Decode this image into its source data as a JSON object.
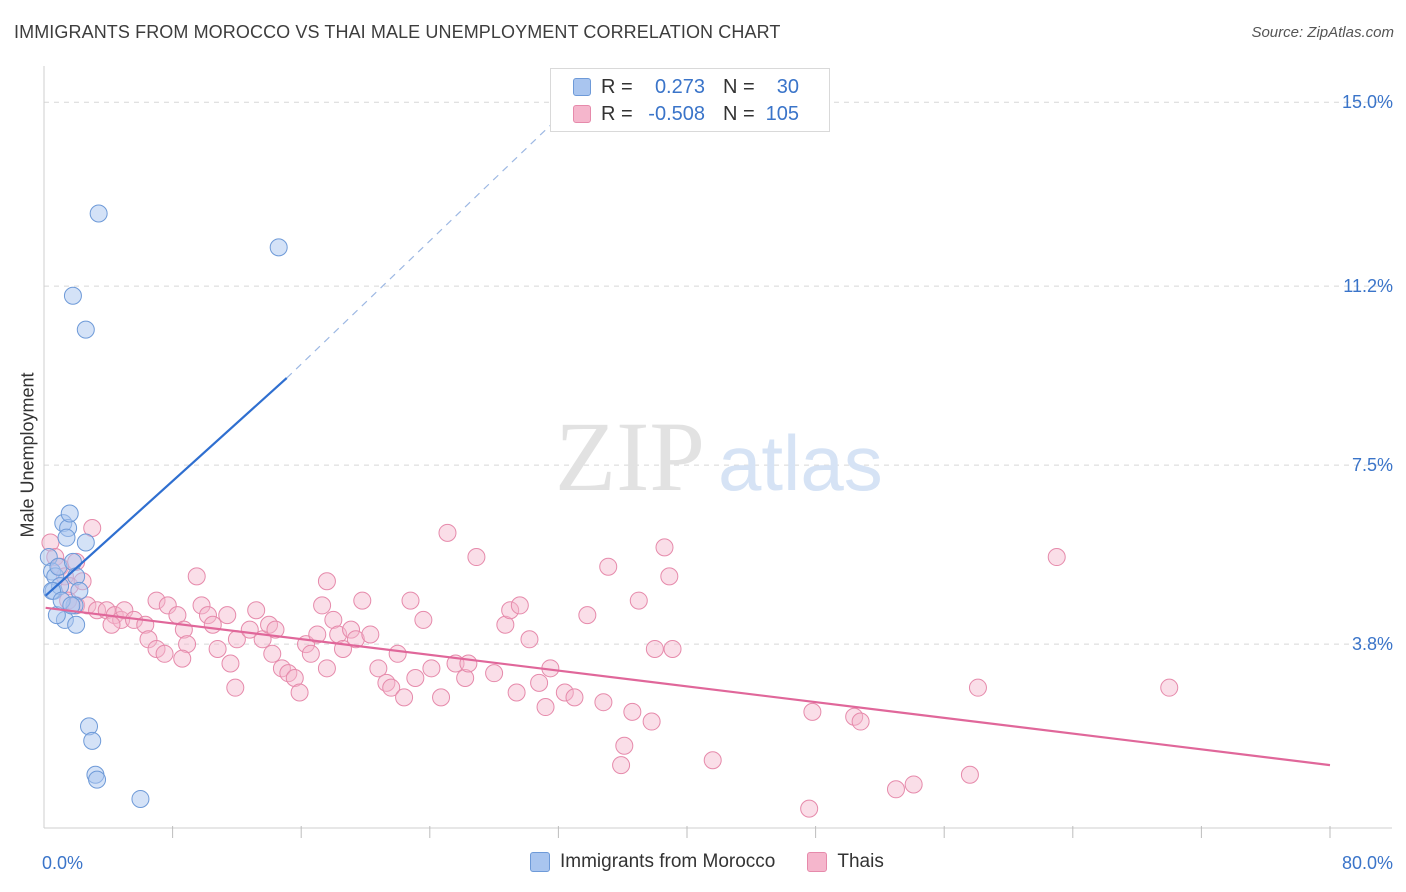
{
  "title": "IMMIGRANTS FROM MOROCCO VS THAI MALE UNEMPLOYMENT CORRELATION CHART",
  "source": "Source: ZipAtlas.com",
  "watermark": {
    "zip": "ZIP",
    "atlas": "atlas"
  },
  "colors": {
    "blue_fill": "#a9c5ef",
    "blue_stroke": "#6e9ad8",
    "blue_line": "#2f6fd0",
    "pink_fill": "#f5b6cc",
    "pink_stroke": "#e68aab",
    "pink_line": "#e0679a",
    "axis_label": "#3a74c9",
    "grid": "#d7d7d7"
  },
  "legend": {
    "rows": [
      {
        "r_label": "R =",
        "r_value": "0.273",
        "n_label": "N =",
        "n_value": "30"
      },
      {
        "r_label": "R =",
        "r_value": "-0.508",
        "n_label": "N =",
        "n_value": "105"
      }
    ]
  },
  "bottom_legend": {
    "series1": "Immigrants from Morocco",
    "series2": "Thais"
  },
  "chart_data": {
    "type": "scatter",
    "title": "IMMIGRANTS FROM MOROCCO VS THAI MALE UNEMPLOYMENT CORRELATION CHART",
    "xlabel": "",
    "ylabel": "Male Unemployment",
    "xlim": [
      0,
      80
    ],
    "ylim": [
      0,
      15.5
    ],
    "x_tick_labels": [
      "0.0%",
      "80.0%"
    ],
    "y_ticks": [
      3.8,
      7.5,
      11.2,
      15.0
    ],
    "y_tick_labels": [
      "3.8%",
      "7.5%",
      "11.2%",
      "15.0%"
    ],
    "series": [
      {
        "name": "Immigrants from Morocco",
        "r": 0.273,
        "n": 30,
        "trend": {
          "x0": 0.1,
          "y0": 4.8,
          "x1": 15.1,
          "y1": 9.3,
          "dash_to_x": 33,
          "dash_to_y": 15.0
        },
        "points": [
          [
            0.3,
            5.6
          ],
          [
            0.5,
            5.3
          ],
          [
            0.7,
            5.2
          ],
          [
            0.9,
            5.4
          ],
          [
            0.6,
            4.9
          ],
          [
            1.0,
            5.0
          ],
          [
            1.2,
            6.3
          ],
          [
            1.5,
            6.2
          ],
          [
            1.4,
            6.0
          ],
          [
            1.6,
            6.5
          ],
          [
            1.8,
            5.5
          ],
          [
            2.0,
            5.2
          ],
          [
            2.2,
            4.9
          ],
          [
            1.9,
            4.6
          ],
          [
            1.3,
            4.3
          ],
          [
            0.8,
            4.4
          ],
          [
            0.5,
            4.9
          ],
          [
            1.1,
            4.7
          ],
          [
            1.7,
            4.6
          ],
          [
            2.0,
            4.2
          ],
          [
            2.6,
            5.9
          ],
          [
            1.8,
            11.0
          ],
          [
            2.6,
            10.3
          ],
          [
            3.4,
            12.7
          ],
          [
            14.6,
            12.0
          ],
          [
            2.8,
            2.1
          ],
          [
            3.0,
            1.8
          ],
          [
            3.2,
            1.1
          ],
          [
            3.3,
            1.0
          ],
          [
            6.0,
            0.6
          ]
        ]
      },
      {
        "name": "Thais",
        "r": -0.508,
        "n": 105,
        "trend": {
          "x0": 0.1,
          "y0": 4.55,
          "x1": 80,
          "y1": 1.3
        },
        "points": [
          [
            0.4,
            5.9
          ],
          [
            0.7,
            5.6
          ],
          [
            1.0,
            5.4
          ],
          [
            1.3,
            5.2
          ],
          [
            1.6,
            5.0
          ],
          [
            2.0,
            5.5
          ],
          [
            2.4,
            5.1
          ],
          [
            3.0,
            6.2
          ],
          [
            1.5,
            4.7
          ],
          [
            2.0,
            4.6
          ],
          [
            2.7,
            4.6
          ],
          [
            3.3,
            4.5
          ],
          [
            3.9,
            4.5
          ],
          [
            4.4,
            4.4
          ],
          [
            4.8,
            4.3
          ],
          [
            5.0,
            4.5
          ],
          [
            4.2,
            4.2
          ],
          [
            5.6,
            4.3
          ],
          [
            6.3,
            4.2
          ],
          [
            6.5,
            3.9
          ],
          [
            7.0,
            3.7
          ],
          [
            7.5,
            3.6
          ],
          [
            7.0,
            4.7
          ],
          [
            7.7,
            4.6
          ],
          [
            8.3,
            4.4
          ],
          [
            8.7,
            4.1
          ],
          [
            8.9,
            3.8
          ],
          [
            8.6,
            3.5
          ],
          [
            9.5,
            5.2
          ],
          [
            9.8,
            4.6
          ],
          [
            10.2,
            4.4
          ],
          [
            10.5,
            4.2
          ],
          [
            10.8,
            3.7
          ],
          [
            11.4,
            4.4
          ],
          [
            11.6,
            3.4
          ],
          [
            11.9,
            2.9
          ],
          [
            12.0,
            3.9
          ],
          [
            12.8,
            4.1
          ],
          [
            13.2,
            4.5
          ],
          [
            13.6,
            3.9
          ],
          [
            14.0,
            4.2
          ],
          [
            14.4,
            4.1
          ],
          [
            14.8,
            3.3
          ],
          [
            14.2,
            3.6
          ],
          [
            15.2,
            3.2
          ],
          [
            15.6,
            3.1
          ],
          [
            15.9,
            2.8
          ],
          [
            16.3,
            3.8
          ],
          [
            16.6,
            3.6
          ],
          [
            17.0,
            4.0
          ],
          [
            17.3,
            4.6
          ],
          [
            17.6,
            3.3
          ],
          [
            18.0,
            4.3
          ],
          [
            18.3,
            4.0
          ],
          [
            18.6,
            3.7
          ],
          [
            19.1,
            4.1
          ],
          [
            19.4,
            3.9
          ],
          [
            19.8,
            4.7
          ],
          [
            20.3,
            4.0
          ],
          [
            20.8,
            3.3
          ],
          [
            21.3,
            3.0
          ],
          [
            21.6,
            2.9
          ],
          [
            22.0,
            3.6
          ],
          [
            22.4,
            2.7
          ],
          [
            22.8,
            4.7
          ],
          [
            23.1,
            3.1
          ],
          [
            23.6,
            4.3
          ],
          [
            24.1,
            3.3
          ],
          [
            24.7,
            2.7
          ],
          [
            25.1,
            6.1
          ],
          [
            25.6,
            3.4
          ],
          [
            26.2,
            3.1
          ],
          [
            26.4,
            3.4
          ],
          [
            26.9,
            5.6
          ],
          [
            17.6,
            5.1
          ],
          [
            28.0,
            3.2
          ],
          [
            28.7,
            4.2
          ],
          [
            29.4,
            2.8
          ],
          [
            29.0,
            4.5
          ],
          [
            29.6,
            4.6
          ],
          [
            30.2,
            3.9
          ],
          [
            30.8,
            3.0
          ],
          [
            31.2,
            2.5
          ],
          [
            31.5,
            3.3
          ],
          [
            32.4,
            2.8
          ],
          [
            33.0,
            2.7
          ],
          [
            33.8,
            4.4
          ],
          [
            34.8,
            2.6
          ],
          [
            35.1,
            5.4
          ],
          [
            35.9,
            1.3
          ],
          [
            36.1,
            1.7
          ],
          [
            36.6,
            2.4
          ],
          [
            37.0,
            4.7
          ],
          [
            37.8,
            2.2
          ],
          [
            38.0,
            3.7
          ],
          [
            38.6,
            5.8
          ],
          [
            38.9,
            5.2
          ],
          [
            39.1,
            3.7
          ],
          [
            41.6,
            1.4
          ],
          [
            47.6,
            0.4
          ],
          [
            47.8,
            2.4
          ],
          [
            50.4,
            2.3
          ],
          [
            50.8,
            2.2
          ],
          [
            53.0,
            0.8
          ],
          [
            54.1,
            0.9
          ],
          [
            57.6,
            1.1
          ],
          [
            58.1,
            2.9
          ],
          [
            63.0,
            5.6
          ],
          [
            70.0,
            2.9
          ]
        ]
      }
    ]
  }
}
